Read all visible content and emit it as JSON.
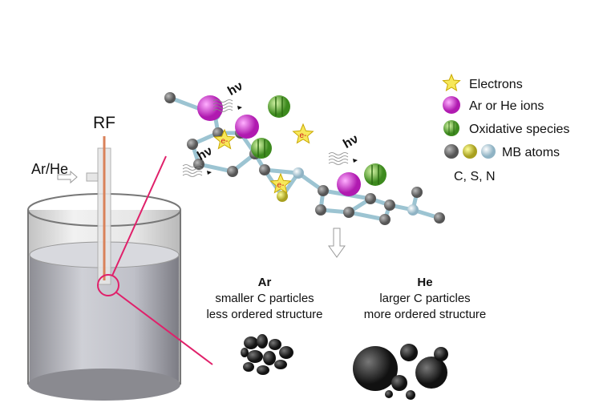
{
  "labels": {
    "rf": "RF",
    "gas": "Ar/He"
  },
  "legend": [
    "Electrons",
    "Ar or He ions",
    "Oxidative species",
    "MB atoms"
  ],
  "legend_note": "C, S, N",
  "photons": [
    "hν",
    "hν",
    "hν"
  ],
  "electrons": [
    "e-",
    "e-",
    "e-"
  ],
  "products": [
    {
      "gas": "Ar",
      "lines": [
        "smaller C particles",
        "less ordered structure"
      ]
    },
    {
      "gas": "He",
      "lines": [
        "larger C particles",
        "more ordered structure"
      ]
    }
  ]
}
